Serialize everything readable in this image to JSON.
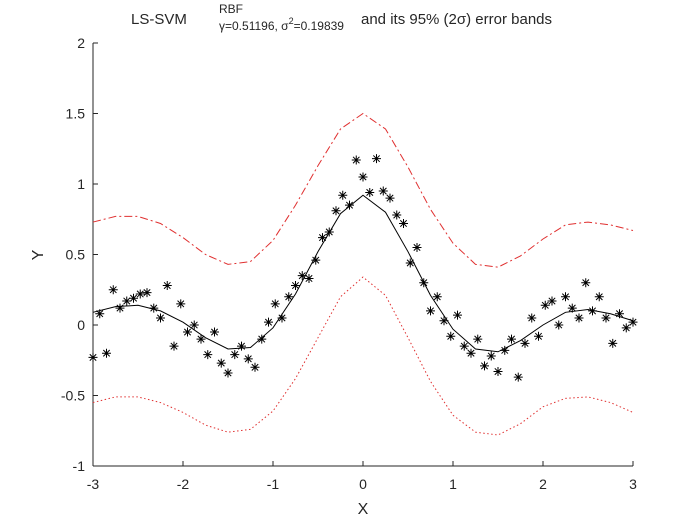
{
  "chart_data": {
    "type": "line",
    "title": {
      "main": "LS-SVM",
      "superscript": "RBF",
      "subscript_gamma_sigma": "γ=0.51196, σ",
      "subscript_power": "2",
      "subscript_sigma_value": "=0.19839",
      "rest": "and its 95% (2σ) error bands"
    },
    "x_label": "X",
    "y_label": "Y",
    "xlim": [
      -3,
      3
    ],
    "xticks": [
      -3,
      -2,
      -1,
      0,
      1,
      2,
      3
    ],
    "ylim": [
      -1,
      2
    ],
    "yticks": [
      -1,
      -0.5,
      0,
      0.5,
      1,
      1.5,
      2
    ],
    "series": [
      {
        "color": "#000000",
        "marker": "*",
        "line_style": "none",
        "x": [
          -3.0,
          -2.925,
          -2.85,
          -2.775,
          -2.7,
          -2.625,
          -2.55,
          -2.475,
          -2.4,
          -2.325,
          -2.25,
          -2.175,
          -2.1,
          -2.025,
          -1.95,
          -1.875,
          -1.8,
          -1.725,
          -1.65,
          -1.575,
          -1.5,
          -1.425,
          -1.35,
          -1.275,
          -1.2,
          -1.125,
          -1.05,
          -0.975,
          -0.9,
          -0.825,
          -0.75,
          -0.675,
          -0.6,
          -0.525,
          -0.45,
          -0.375,
          -0.3,
          -0.225,
          -0.15,
          -0.075,
          0.0,
          0.075,
          0.15,
          0.225,
          0.3,
          0.375,
          0.45,
          0.525,
          0.6,
          0.675,
          0.75,
          0.825,
          0.9,
          0.975,
          1.05,
          1.125,
          1.2,
          1.275,
          1.35,
          1.425,
          1.5,
          1.575,
          1.65,
          1.725,
          1.8,
          1.875,
          1.95,
          2.025,
          2.1,
          2.175,
          2.25,
          2.325,
          2.4,
          2.475,
          2.55,
          2.625,
          2.7,
          2.775,
          2.85,
          2.925,
          3.0
        ],
        "values": [
          -0.23,
          0.08,
          -0.2,
          0.25,
          0.12,
          0.17,
          0.19,
          0.22,
          0.23,
          0.12,
          0.05,
          0.28,
          -0.15,
          0.15,
          -0.05,
          0.0,
          -0.1,
          -0.21,
          -0.05,
          -0.27,
          -0.34,
          -0.21,
          -0.15,
          -0.24,
          -0.3,
          -0.1,
          0.02,
          0.15,
          0.05,
          0.2,
          0.28,
          0.35,
          0.33,
          0.46,
          0.62,
          0.66,
          0.81,
          0.92,
          0.85,
          1.17,
          1.05,
          0.94,
          1.18,
          0.95,
          0.9,
          0.78,
          0.72,
          0.44,
          0.55,
          0.3,
          0.1,
          0.2,
          0.03,
          -0.08,
          0.07,
          -0.15,
          -0.2,
          -0.1,
          -0.29,
          -0.22,
          -0.33,
          -0.18,
          -0.1,
          -0.37,
          -0.13,
          0.05,
          -0.08,
          0.14,
          0.17,
          0.0,
          0.2,
          0.12,
          0.05,
          0.3,
          0.1,
          0.2,
          0.05,
          -0.13,
          0.08,
          -0.02,
          0.02
        ]
      },
      {
        "color": "#000000",
        "marker": "none",
        "line_style": "solid",
        "x": [
          -3,
          -2.75,
          -2.5,
          -2.25,
          -2,
          -1.75,
          -1.5,
          -1.25,
          -1,
          -0.75,
          -0.5,
          -0.25,
          0,
          0.25,
          0.5,
          0.75,
          1,
          1.25,
          1.5,
          1.75,
          2,
          2.25,
          2.5,
          2.75,
          3
        ],
        "values": [
          0.09,
          0.13,
          0.14,
          0.1,
          0.02,
          -0.09,
          -0.17,
          -0.16,
          -0.02,
          0.22,
          0.52,
          0.79,
          0.92,
          0.8,
          0.52,
          0.21,
          -0.03,
          -0.17,
          -0.19,
          -0.11,
          0.0,
          0.09,
          0.11,
          0.08,
          0.03
        ]
      },
      {
        "color": "#e03030",
        "marker": "none",
        "line_style": "dashdot",
        "x": [
          -3,
          -2.75,
          -2.5,
          -2.25,
          -2,
          -1.75,
          -1.5,
          -1.25,
          -1,
          -0.75,
          -0.5,
          -0.25,
          0,
          0.25,
          0.5,
          0.75,
          1,
          1.25,
          1.5,
          1.75,
          2,
          2.25,
          2.5,
          2.75,
          3
        ],
        "values": [
          0.73,
          0.77,
          0.77,
          0.72,
          0.62,
          0.5,
          0.43,
          0.45,
          0.6,
          0.85,
          1.13,
          1.39,
          1.5,
          1.39,
          1.12,
          0.82,
          0.58,
          0.43,
          0.41,
          0.49,
          0.61,
          0.71,
          0.73,
          0.71,
          0.67
        ]
      },
      {
        "color": "#e03030",
        "marker": "none",
        "line_style": "dotted",
        "x": [
          -3,
          -2.75,
          -2.5,
          -2.25,
          -2,
          -1.75,
          -1.5,
          -1.25,
          -1,
          -0.75,
          -0.5,
          -0.25,
          0,
          0.25,
          0.5,
          0.75,
          1,
          1.25,
          1.5,
          1.75,
          2,
          2.25,
          2.5,
          2.75,
          3
        ],
        "values": [
          -0.55,
          -0.51,
          -0.51,
          -0.55,
          -0.62,
          -0.71,
          -0.76,
          -0.74,
          -0.61,
          -0.38,
          -0.09,
          0.2,
          0.34,
          0.21,
          -0.09,
          -0.4,
          -0.64,
          -0.76,
          -0.78,
          -0.7,
          -0.58,
          -0.52,
          -0.51,
          -0.55,
          -0.62
        ]
      }
    ]
  }
}
